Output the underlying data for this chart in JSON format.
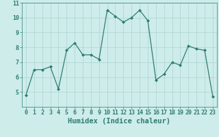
{
  "x": [
    0,
    1,
    2,
    3,
    4,
    5,
    6,
    7,
    8,
    9,
    10,
    11,
    12,
    13,
    14,
    15,
    16,
    17,
    18,
    19,
    20,
    21,
    22,
    23
  ],
  "y": [
    4.8,
    6.5,
    6.5,
    6.7,
    5.2,
    7.8,
    8.3,
    7.5,
    7.5,
    7.2,
    10.5,
    10.1,
    9.7,
    10.0,
    10.5,
    9.8,
    5.8,
    6.2,
    7.0,
    6.8,
    8.1,
    7.9,
    7.8,
    4.7
  ],
  "xlim": [
    -0.5,
    23.5
  ],
  "ylim": [
    4,
    11
  ],
  "yticks": [
    5,
    6,
    7,
    8,
    9,
    10,
    11
  ],
  "xticks": [
    0,
    1,
    2,
    3,
    4,
    5,
    6,
    7,
    8,
    9,
    10,
    11,
    12,
    13,
    14,
    15,
    16,
    17,
    18,
    19,
    20,
    21,
    22,
    23
  ],
  "xlabel": "Humidex (Indice chaleur)",
  "line_color": "#2d7d6f",
  "marker": "D",
  "marker_size": 2.0,
  "bg_color": "#cdecea",
  "grid_color": "#aed4d0",
  "tick_color": "#2d7d6f",
  "label_color": "#2d7d6f",
  "font_size_tick": 6,
  "font_size_xlabel": 7.5
}
